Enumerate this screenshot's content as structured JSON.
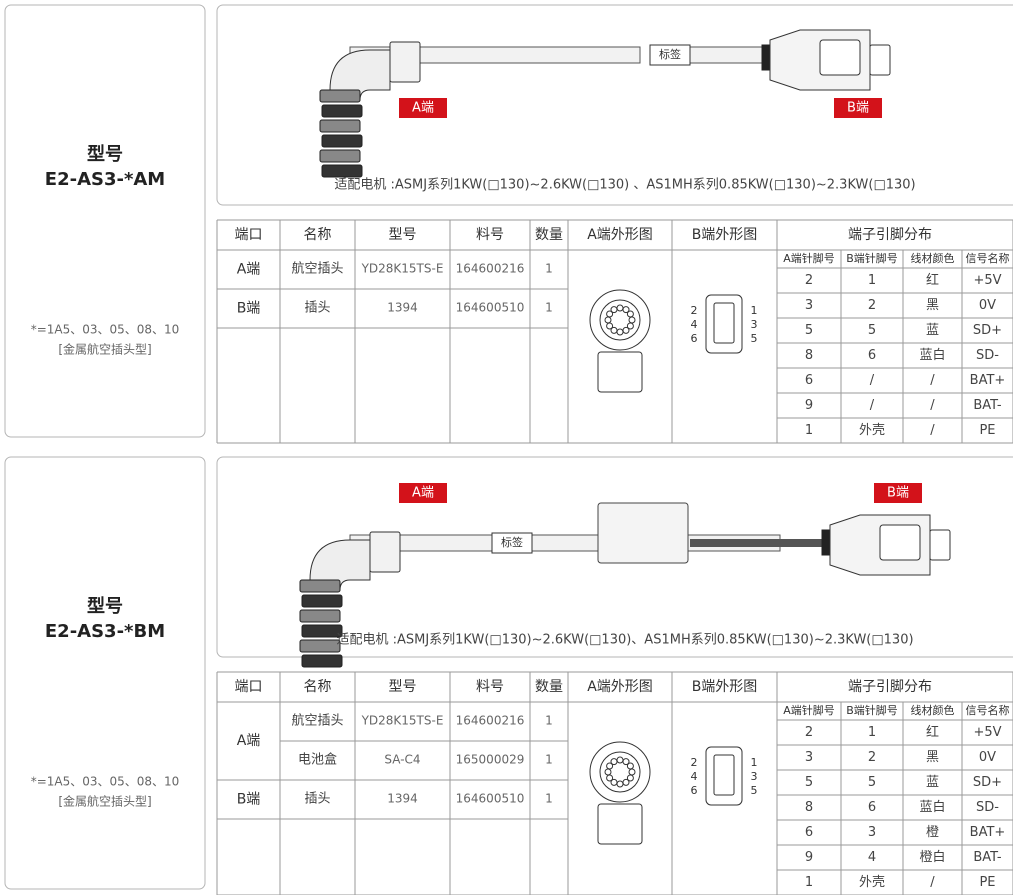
{
  "sections": [
    {
      "title": "型号",
      "model": "E2-AS3-*AM",
      "note": "*=1A5、03、05、08、10",
      "note2": "[金属航空插头型]",
      "drawing": {
        "a_label": "A端",
        "b_label": "B端",
        "tag": "标签",
        "caption": "适配电机 :ASMJ系列1KW(□130)~2.6KW(□130) 、AS1MH系列0.85KW(□130)~2.3KW(□130)"
      },
      "table": {
        "headers": [
          "端口",
          "名称",
          "型号",
          "料号",
          "数量",
          "A端外形图",
          "B端外形图",
          "端子引脚分布"
        ],
        "parts": [
          {
            "port": "A端",
            "items": [
              [
                "航空插头",
                "YD28K15TS-E",
                "164600216",
                "1"
              ]
            ]
          },
          {
            "port": "B端",
            "items": [
              [
                "插头",
                "1394",
                "164600510",
                "1"
              ]
            ]
          }
        ],
        "pin_headers": [
          "A端针脚号",
          "B端针脚号",
          "线材颜色",
          "信号名称"
        ],
        "pins": [
          [
            "2",
            "1",
            "红",
            "+5V"
          ],
          [
            "3",
            "2",
            "黑",
            "0V"
          ],
          [
            "5",
            "5",
            "蓝",
            "SD+"
          ],
          [
            "8",
            "6",
            "蓝白",
            "SD-"
          ],
          [
            "6",
            "/",
            "/",
            "BAT+"
          ],
          [
            "9",
            "/",
            "/",
            "BAT-"
          ],
          [
            "1",
            "外壳",
            "/",
            "PE"
          ]
        ],
        "b_pins_left": [
          "2",
          "4",
          "6"
        ],
        "b_pins_right": [
          "1",
          "3",
          "5"
        ]
      }
    },
    {
      "title": "型号",
      "model": "E2-AS3-*BM",
      "note": "*=1A5、03、05、08、10",
      "note2": "[金属航空插头型]",
      "drawing": {
        "a_label": "A端",
        "b_label": "B端",
        "tag": "标签",
        "caption": "适配电机 :ASMJ系列1KW(□130)~2.6KW(□130)、AS1MH系列0.85KW(□130)~2.3KW(□130)"
      },
      "table": {
        "headers": [
          "端口",
          "名称",
          "型号",
          "料号",
          "数量",
          "A端外形图",
          "B端外形图",
          "端子引脚分布"
        ],
        "parts": [
          {
            "port": "A端",
            "items": [
              [
                "航空插头",
                "YD28K15TS-E",
                "164600216",
                "1"
              ],
              [
                "电池盒",
                "SA-C4",
                "165000029",
                "1"
              ]
            ]
          },
          {
            "port": "B端",
            "items": [
              [
                "插头",
                "1394",
                "164600510",
                "1"
              ]
            ]
          }
        ],
        "pin_headers": [
          "A端针脚号",
          "B端针脚号",
          "线材颜色",
          "信号名称"
        ],
        "pins": [
          [
            "2",
            "1",
            "红",
            "+5V"
          ],
          [
            "3",
            "2",
            "黑",
            "0V"
          ],
          [
            "5",
            "5",
            "蓝",
            "SD+"
          ],
          [
            "8",
            "6",
            "蓝白",
            "SD-"
          ],
          [
            "6",
            "3",
            "橙",
            "BAT+"
          ],
          [
            "9",
            "4",
            "橙白",
            "BAT-"
          ],
          [
            "1",
            "外壳",
            "/",
            "PE"
          ]
        ],
        "b_pins_left": [
          "2",
          "4",
          "6"
        ],
        "b_pins_right": [
          "1",
          "3",
          "5"
        ]
      }
    }
  ]
}
